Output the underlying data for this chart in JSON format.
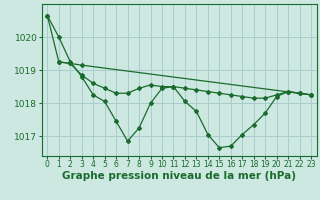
{
  "background_color": "#cce8e0",
  "grid_color": "#aacccc",
  "line_color": "#1a6b2e",
  "marker_color": "#1a6b2e",
  "xlabel": "Graphe pression niveau de la mer (hPa)",
  "xlabel_fontsize": 7.5,
  "xtick_fontsize": 5.5,
  "ytick_fontsize": 6.5,
  "xlim": [
    -0.5,
    23.5
  ],
  "ylim": [
    1016.4,
    1021.0
  ],
  "yticks": [
    1017,
    1018,
    1019,
    1020
  ],
  "xticks": [
    0,
    1,
    2,
    3,
    4,
    5,
    6,
    7,
    8,
    9,
    10,
    11,
    12,
    13,
    14,
    15,
    16,
    17,
    18,
    19,
    20,
    21,
    22,
    23
  ],
  "series1_x": [
    0,
    1,
    2,
    3,
    4,
    5,
    6,
    7,
    8,
    9,
    10,
    11,
    12,
    13,
    14,
    15,
    16,
    17,
    18,
    19,
    20,
    21,
    22,
    23
  ],
  "series1_y": [
    1020.65,
    1020.0,
    1019.25,
    1018.8,
    1018.25,
    1018.05,
    1017.45,
    1016.85,
    1017.25,
    1018.0,
    1018.45,
    1018.5,
    1018.05,
    1017.75,
    1017.05,
    1016.65,
    1016.7,
    1017.05,
    1017.35,
    1017.7,
    1018.2,
    1018.35,
    1018.3,
    1018.25
  ],
  "series2_x": [
    0,
    1,
    2,
    3,
    23
  ],
  "series2_y": [
    1020.65,
    1019.25,
    1019.2,
    1019.15,
    1018.25
  ],
  "series3_x": [
    1,
    2,
    3,
    4,
    5,
    6,
    7,
    8,
    9,
    10,
    11,
    12,
    13,
    14,
    15,
    16,
    17,
    18,
    19,
    20,
    21,
    22,
    23
  ],
  "series3_y": [
    1019.25,
    1019.2,
    1018.85,
    1018.6,
    1018.45,
    1018.3,
    1018.3,
    1018.45,
    1018.55,
    1018.5,
    1018.5,
    1018.45,
    1018.4,
    1018.35,
    1018.3,
    1018.25,
    1018.2,
    1018.15,
    1018.15,
    1018.25,
    1018.35,
    1018.3,
    1018.25
  ]
}
